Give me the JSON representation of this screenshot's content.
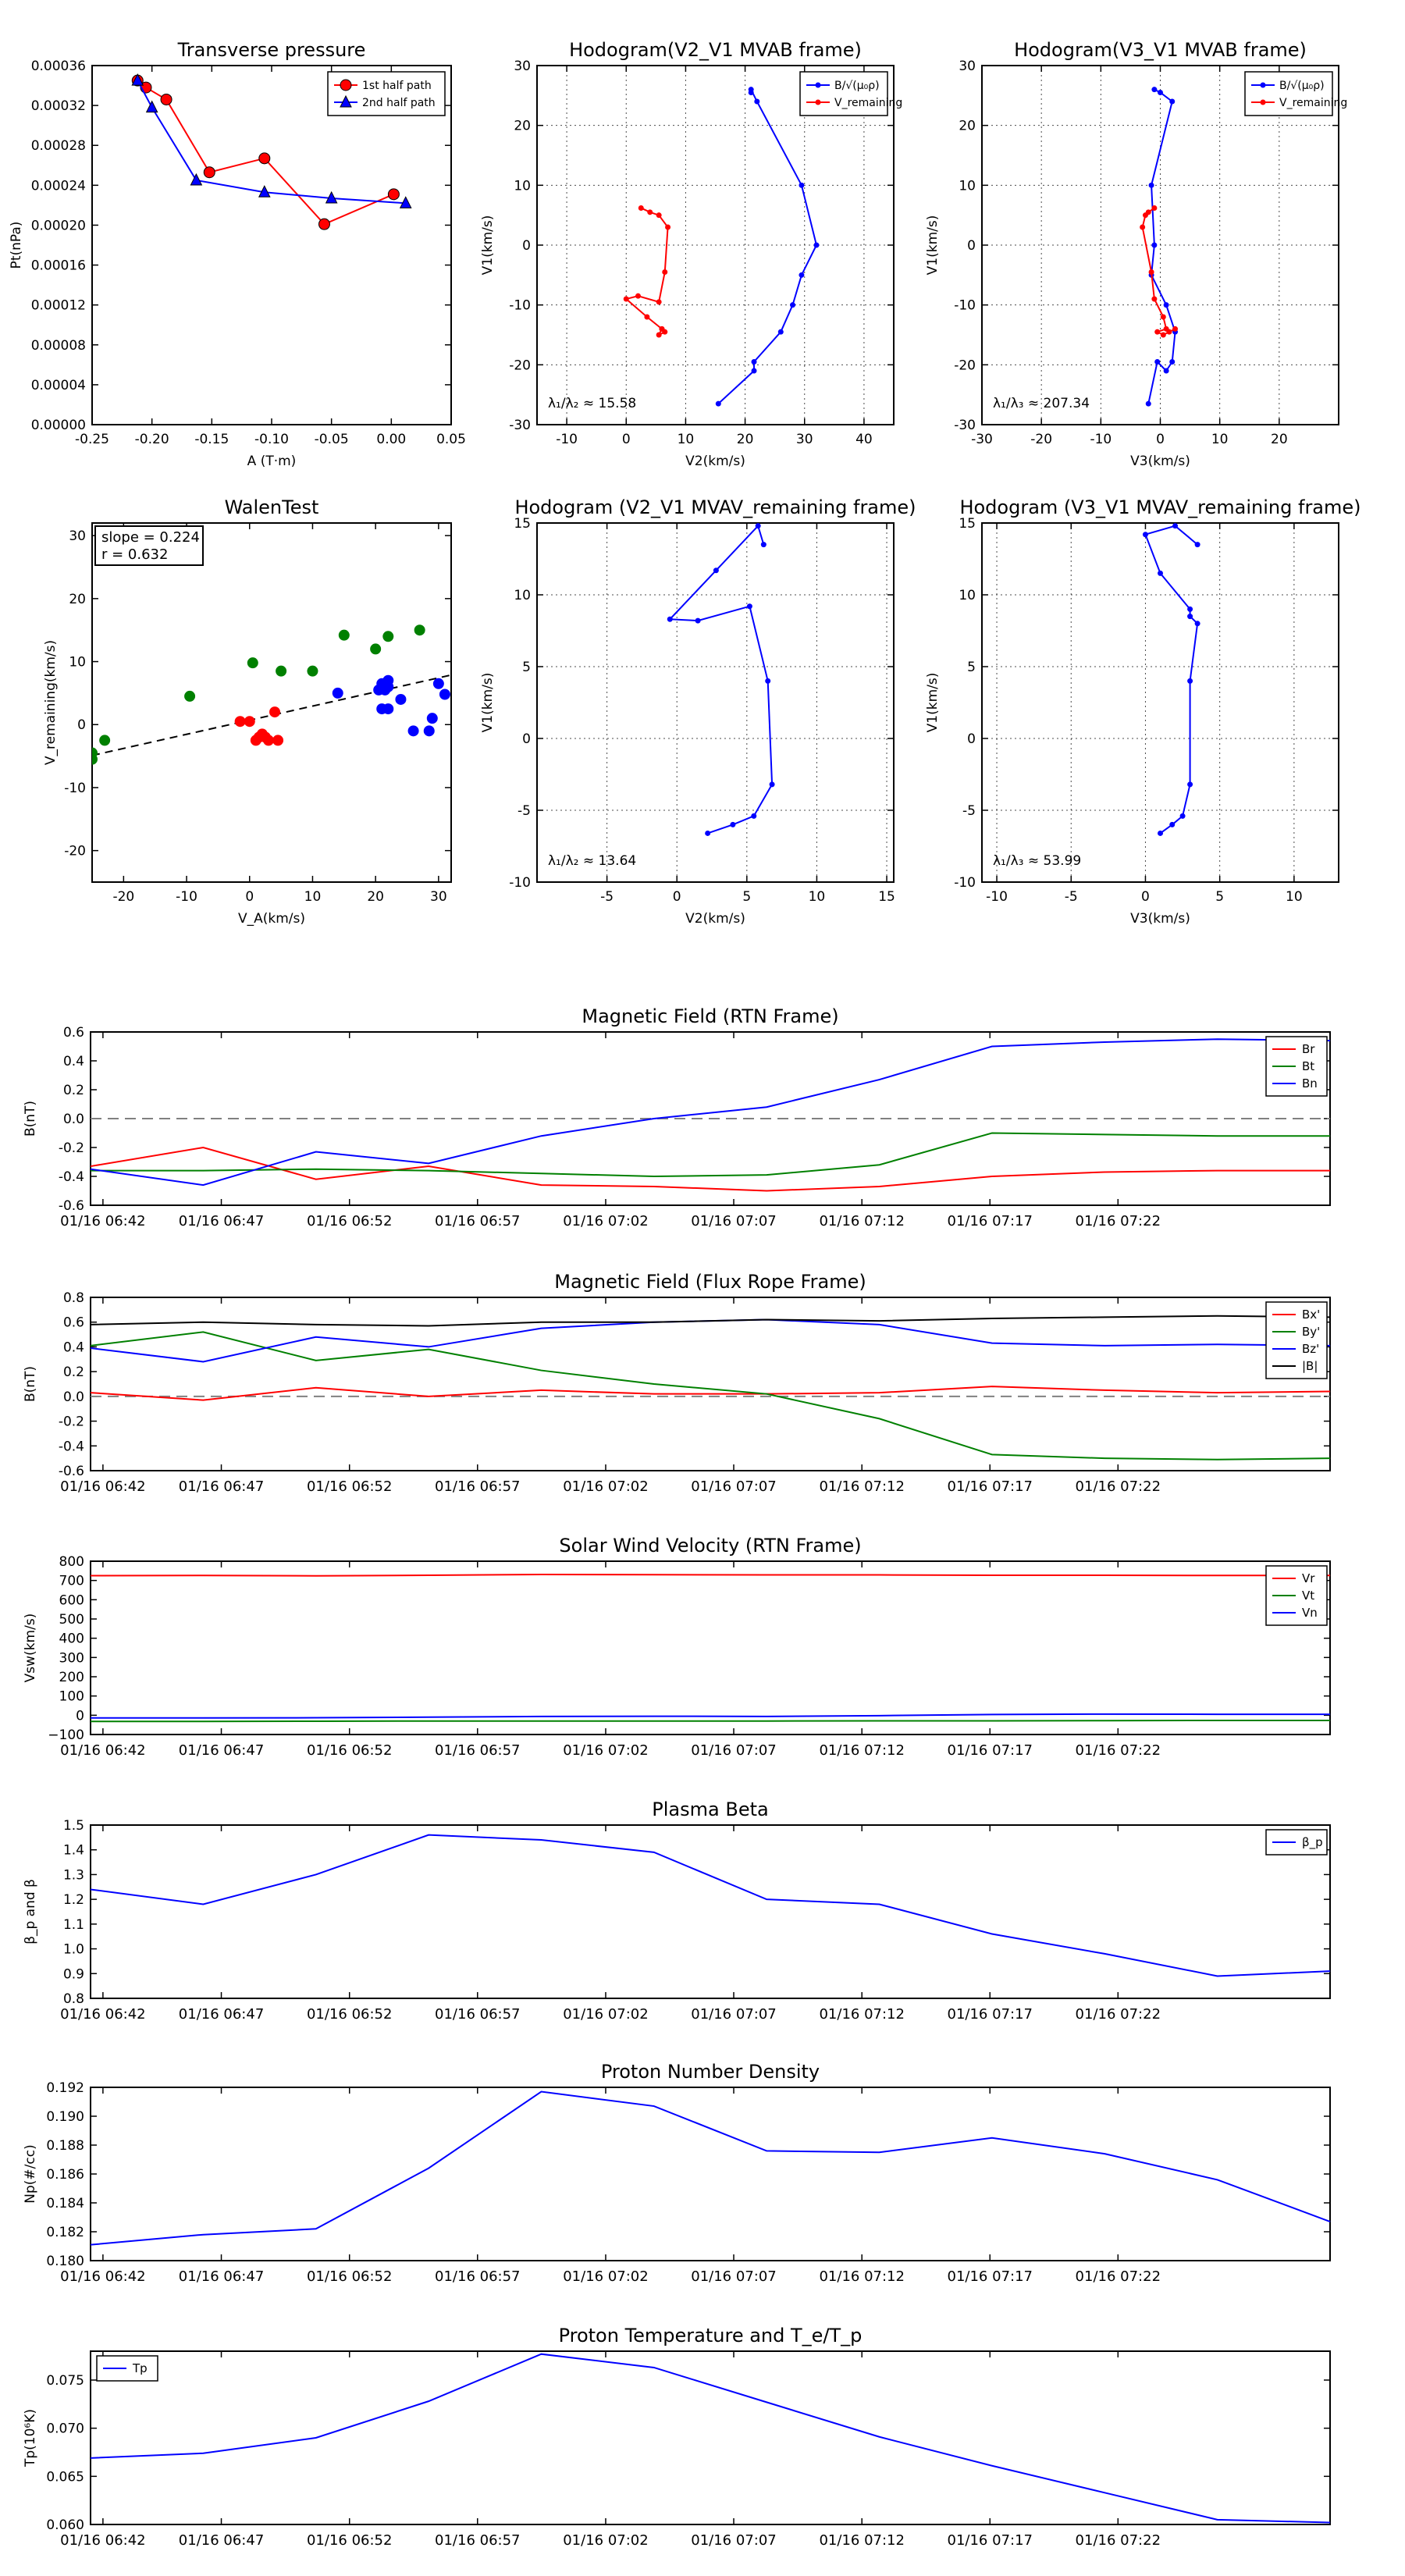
{
  "time_ticks": [
    "01/16 06:42",
    "01/16 06:47",
    "01/16 06:52",
    "01/16 06:57",
    "01/16 07:02",
    "01/16 07:07",
    "01/16 07:12",
    "01/16 07:17",
    "01/16 07:22"
  ],
  "colors": {
    "red": "#ff0000",
    "green": "#008000",
    "blue": "#0000ff",
    "black": "#000000",
    "grey": "#808080"
  },
  "chart_data": [
    {
      "id": "pt",
      "type": "line",
      "title": "Transverse pressure",
      "xlabel": "A (T·m)",
      "ylabel": "Pt(nPa)",
      "xlim": [
        -0.25,
        0.05
      ],
      "ylim": [
        0,
        0.00036
      ],
      "xticks": [
        "-0.25",
        "-0.20",
        "-0.15",
        "-0.10",
        "-0.05",
        "0.00",
        "0.05"
      ],
      "xtick_vals": [
        -0.25,
        -0.2,
        -0.15,
        -0.1,
        -0.05,
        0,
        0.05
      ],
      "yticks": [
        "0.00000",
        "0.00004",
        "0.00008",
        "0.00012",
        "0.00016",
        "0.00020",
        "0.00024",
        "0.00028",
        "0.00032",
        "0.00036"
      ],
      "ytick_vals": [
        0,
        4e-05,
        8e-05,
        0.00012,
        0.00016,
        0.0002,
        0.00024,
        0.00028,
        0.00032,
        0.00036
      ],
      "grid": false,
      "legend": "top-right",
      "series": [
        {
          "name": "1st half path",
          "color": "#ff0000",
          "marker": "circle",
          "x": [
            -0.212,
            -0.205,
            -0.188,
            -0.152,
            -0.106,
            -0.056,
            0.002
          ],
          "y": [
            0.000345,
            0.000338,
            0.000326,
            0.000253,
            0.000267,
            0.000201,
            0.000231
          ]
        },
        {
          "name": "2nd half path",
          "color": "#0000ff",
          "marker": "triangle",
          "x": [
            -0.212,
            -0.2,
            -0.163,
            -0.106,
            -0.05,
            0.012
          ],
          "y": [
            0.000345,
            0.000318,
            0.000245,
            0.000233,
            0.000227,
            0.000222
          ]
        }
      ]
    },
    {
      "id": "h1",
      "type": "line",
      "title": "Hodogram(V2_V1 MVAB frame)",
      "xlabel": "V2(km/s)",
      "ylabel": "V1(km/s)",
      "xlim": [
        -15,
        45
      ],
      "ylim": [
        -30,
        30
      ],
      "xticks": [
        "-10",
        "0",
        "10",
        "20",
        "30",
        "40"
      ],
      "xtick_vals": [
        -10,
        0,
        10,
        20,
        30,
        40
      ],
      "yticks": [
        "-30",
        "-20",
        "-10",
        "0",
        "10",
        "20",
        "30"
      ],
      "ytick_vals": [
        -30,
        -20,
        -10,
        0,
        10,
        20,
        30
      ],
      "grid": true,
      "legend": "top-right",
      "annotation": "λ₁/λ₂ ≈ 15.58",
      "series": [
        {
          "name": "B/√(μ₀ρ)",
          "color": "#0000ff",
          "marker": "dot",
          "x": [
            21,
            21,
            22,
            29.5,
            32,
            29.5,
            28,
            26,
            21.5,
            21.5,
            15.5
          ],
          "y": [
            25.5,
            26,
            24,
            10,
            0,
            -5,
            -10,
            -14.5,
            -19.5,
            -21,
            -26.5
          ]
        },
        {
          "name": "V_remaining",
          "color": "#ff0000",
          "marker": "dot",
          "x": [
            2.5,
            4,
            5.5,
            7,
            6.5,
            5.5,
            2,
            0,
            3.5,
            6,
            6.5,
            5.5,
            6
          ],
          "y": [
            6.2,
            5.5,
            5,
            3,
            -4.5,
            -9.5,
            -8.5,
            -9,
            -12,
            -14,
            -14.5,
            -15,
            -14
          ]
        }
      ]
    },
    {
      "id": "h2",
      "type": "line",
      "title": "Hodogram(V3_V1 MVAB frame)",
      "xlabel": "V3(km/s)",
      "ylabel": "V1(km/s)",
      "xlim": [
        -30,
        30
      ],
      "ylim": [
        -30,
        30
      ],
      "xticks": [
        "-30",
        "-20",
        "-10",
        "0",
        "10",
        "20"
      ],
      "xtick_vals": [
        -30,
        -20,
        -10,
        0,
        10,
        20
      ],
      "yticks": [
        "-30",
        "-20",
        "-10",
        "0",
        "10",
        "20",
        "30"
      ],
      "ytick_vals": [
        -30,
        -20,
        -10,
        0,
        10,
        20,
        30
      ],
      "grid": true,
      "legend": "top-right",
      "annotation": "λ₁/λ₃ ≈ 207.34",
      "series": [
        {
          "name": "B/√(μ₀ρ)",
          "color": "#0000ff",
          "marker": "dot",
          "x": [
            -1,
            0,
            2,
            -1.5,
            -1,
            -1.5,
            1,
            2.5,
            2,
            1,
            -0.5,
            -2
          ],
          "y": [
            26,
            25.5,
            24,
            10,
            0,
            -5,
            -10,
            -14.5,
            -19.5,
            -21,
            -19.5,
            -26.5
          ]
        },
        {
          "name": "V_remaining",
          "color": "#ff0000",
          "marker": "dot",
          "x": [
            -1,
            -2,
            -2.5,
            -3,
            -1.5,
            -1,
            0.5,
            1,
            -0.5,
            0.5,
            1.5,
            2.5
          ],
          "y": [
            6.2,
            5.5,
            5,
            3,
            -4.5,
            -9,
            -12,
            -14,
            -14.5,
            -15,
            -14.5,
            -14
          ]
        }
      ]
    },
    {
      "id": "walen",
      "type": "scatter",
      "title": "WalenTest",
      "xlabel": "V_A(km/s)",
      "ylabel": "V_remaining(km/s)",
      "xlim": [
        -25,
        32
      ],
      "ylim": [
        -25,
        32
      ],
      "xticks": [
        "-20",
        "-10",
        "0",
        "10",
        "20",
        "30"
      ],
      "xtick_vals": [
        -20,
        -10,
        0,
        10,
        20,
        30
      ],
      "yticks": [
        "-20",
        "-10",
        "0",
        "10",
        "20",
        "30"
      ],
      "ytick_vals": [
        -20,
        -10,
        0,
        10,
        20,
        30
      ],
      "grid": false,
      "legend_box": [
        "slope = 0.224",
        "r = 0.632"
      ],
      "fit_line": {
        "slope": 0.224,
        "intercept": 0.7
      },
      "series": [
        {
          "color": "#008000",
          "x": [
            -25,
            -25,
            -23,
            -9.5,
            0.5,
            5,
            10,
            15,
            20,
            22,
            27
          ],
          "y": [
            -5.5,
            -4.5,
            -2.5,
            4.5,
            9.8,
            8.5,
            8.5,
            14.2,
            12,
            14,
            15
          ]
        },
        {
          "color": "#ff0000",
          "x": [
            -1.5,
            0,
            1,
            1.5,
            2,
            2.5,
            3,
            4,
            4.5
          ],
          "y": [
            0.5,
            0.5,
            -2.5,
            -2,
            -1.5,
            -2,
            -2.5,
            2,
            -2.5
          ]
        },
        {
          "color": "#0000ff",
          "x": [
            14,
            20.5,
            21,
            21,
            21.5,
            22,
            22,
            22,
            24,
            26,
            28.5,
            29,
            30,
            31
          ],
          "y": [
            5,
            5.5,
            6.5,
            2.5,
            5.5,
            6,
            7,
            2.5,
            4,
            -1,
            -1,
            1,
            6.5,
            4.8
          ]
        }
      ]
    },
    {
      "id": "h3",
      "type": "line",
      "title": "Hodogram (V2_V1 MVAV_remaining frame)",
      "xlabel": "V2(km/s)",
      "ylabel": "V1(km/s)",
      "xlim": [
        -10,
        15.5
      ],
      "ylim": [
        -10,
        15
      ],
      "xticks": [
        "-5",
        "0",
        "5",
        "10",
        "15"
      ],
      "xtick_vals": [
        -5,
        0,
        5,
        10,
        15
      ],
      "yticks": [
        "-10",
        "-5",
        "0",
        "5",
        "10",
        "15"
      ],
      "ytick_vals": [
        -10,
        -5,
        0,
        5,
        10,
        15
      ],
      "grid": true,
      "annotation": "λ₁/λ₂ ≈ 13.64",
      "series": [
        {
          "color": "#0000ff",
          "marker": "dot",
          "x": [
            6.2,
            5.8,
            2.8,
            -0.5,
            1.5,
            5.2,
            6.5,
            6.8,
            5.5,
            4,
            2.2
          ],
          "y": [
            13.5,
            14.8,
            11.7,
            8.3,
            8.2,
            9.2,
            4,
            -3.2,
            -5.4,
            -6,
            -6.6
          ]
        }
      ]
    },
    {
      "id": "h4",
      "type": "line",
      "title": "Hodogram (V3_V1 MVAV_remaining frame)",
      "xlabel": "V3(km/s)",
      "ylabel": "V1(km/s)",
      "xlim": [
        -11,
        13
      ],
      "ylim": [
        -10,
        15
      ],
      "xticks": [
        "-10",
        "-5",
        "0",
        "5",
        "10"
      ],
      "xtick_vals": [
        -10,
        -5,
        0,
        5,
        10
      ],
      "yticks": [
        "-10",
        "-5",
        "0",
        "5",
        "10",
        "15"
      ],
      "ytick_vals": [
        -10,
        -5,
        0,
        5,
        10,
        15
      ],
      "grid": true,
      "annotation": "λ₁/λ₃ ≈ 53.99",
      "series": [
        {
          "color": "#0000ff",
          "marker": "dot",
          "x": [
            3.5,
            2,
            0,
            1,
            3,
            3,
            3.5,
            3,
            3,
            2.5,
            1.8,
            1
          ],
          "y": [
            13.5,
            14.8,
            14.2,
            11.5,
            9,
            8.5,
            8,
            4,
            -3.2,
            -5.4,
            -6,
            -6.6
          ]
        }
      ]
    },
    {
      "id": "bmag",
      "type": "line",
      "title": "Magnetic Field (RTN Frame)",
      "ylabel": "B(nT)",
      "ylim": [
        -0.6,
        0.6
      ],
      "yticks": [
        "-0.6",
        "-0.4",
        "-0.2",
        "0.0",
        "0.2",
        "0.4",
        "0.6"
      ],
      "ytick_vals": [
        -0.6,
        -0.4,
        -0.2,
        0,
        0.2,
        0.4,
        0.6
      ],
      "zero_line": true,
      "legend": "top-right",
      "series": [
        {
          "name": "Br",
          "color": "#ff0000",
          "y": [
            -0.33,
            -0.2,
            -0.42,
            -0.33,
            -0.46,
            -0.47,
            -0.5,
            -0.47,
            -0.4,
            -0.37,
            -0.36,
            -0.36
          ]
        },
        {
          "name": "Bt",
          "color": "#008000",
          "y": [
            -0.36,
            -0.36,
            -0.35,
            -0.36,
            -0.38,
            -0.4,
            -0.39,
            -0.32,
            -0.1,
            -0.11,
            -0.12,
            -0.12
          ]
        },
        {
          "name": "Bn",
          "color": "#0000ff",
          "y": [
            -0.35,
            -0.46,
            -0.23,
            -0.31,
            -0.12,
            0.0,
            0.08,
            0.27,
            0.5,
            0.53,
            0.55,
            0.54
          ]
        }
      ]
    },
    {
      "id": "bfr",
      "type": "line",
      "title": "Magnetic Field (Flux Rope Frame)",
      "ylabel": "B(nT)",
      "ylim": [
        -0.6,
        0.8
      ],
      "yticks": [
        "-0.6",
        "-0.4",
        "-0.2",
        "0.0",
        "0.2",
        "0.4",
        "0.6",
        "0.8"
      ],
      "ytick_vals": [
        -0.6,
        -0.4,
        -0.2,
        0,
        0.2,
        0.4,
        0.6,
        0.8
      ],
      "zero_line": true,
      "legend": "top-right",
      "series": [
        {
          "name": "Bx'",
          "color": "#ff0000",
          "y": [
            0.03,
            -0.03,
            0.07,
            0.0,
            0.05,
            0.02,
            0.02,
            0.03,
            0.08,
            0.05,
            0.03,
            0.04
          ]
        },
        {
          "name": "By'",
          "color": "#008000",
          "y": [
            0.41,
            0.52,
            0.29,
            0.38,
            0.21,
            0.1,
            0.02,
            -0.18,
            -0.47,
            -0.5,
            -0.51,
            -0.5
          ]
        },
        {
          "name": "Bz'",
          "color": "#0000ff",
          "y": [
            0.39,
            0.28,
            0.48,
            0.4,
            0.55,
            0.6,
            0.62,
            0.58,
            0.43,
            0.41,
            0.42,
            0.41
          ]
        },
        {
          "name": "|B|",
          "color": "#000000",
          "y": [
            0.58,
            0.6,
            0.58,
            0.57,
            0.6,
            0.6,
            0.62,
            0.61,
            0.63,
            0.64,
            0.65,
            0.64
          ]
        }
      ]
    },
    {
      "id": "vsw",
      "type": "line",
      "title": "Solar Wind Velocity (RTN Frame)",
      "ylabel": "Vsw(km/s)",
      "ylim": [
        -100,
        800
      ],
      "yticks": [
        "−100",
        "0",
        "100",
        "200",
        "300",
        "400",
        "500",
        "600",
        "700",
        "800"
      ],
      "ytick_vals": [
        -100,
        0,
        100,
        200,
        300,
        400,
        500,
        600,
        700,
        800
      ],
      "legend": "top-right",
      "series": [
        {
          "name": "Vr",
          "color": "#ff0000",
          "y": [
            725,
            726,
            724,
            727,
            731,
            730,
            729,
            729,
            727,
            727,
            726,
            726
          ]
        },
        {
          "name": "Vt",
          "color": "#008000",
          "y": [
            -32,
            -32,
            -31,
            -30,
            -30,
            -30,
            -30,
            -29,
            -29,
            -28,
            -27,
            -27
          ]
        },
        {
          "name": "Vn",
          "color": "#0000ff",
          "y": [
            -14,
            -14,
            -13,
            -10,
            -6,
            -5,
            -6,
            -2,
            4,
            6,
            5,
            5
          ]
        }
      ]
    },
    {
      "id": "beta",
      "type": "line",
      "title": "Plasma Beta",
      "ylabel": "β_p and β",
      "ylim": [
        0.8,
        1.5
      ],
      "yticks": [
        "0.8",
        "0.9",
        "1.0",
        "1.1",
        "1.2",
        "1.3",
        "1.4",
        "1.5"
      ],
      "ytick_vals": [
        0.8,
        0.9,
        1.0,
        1.1,
        1.2,
        1.3,
        1.4,
        1.5
      ],
      "legend": "top-right",
      "series": [
        {
          "name": "β_p",
          "color": "#0000ff",
          "y": [
            1.24,
            1.18,
            1.3,
            1.46,
            1.44,
            1.39,
            1.2,
            1.18,
            1.06,
            0.98,
            0.89,
            0.91
          ]
        }
      ]
    },
    {
      "id": "np",
      "type": "line",
      "title": "Proton Number Density",
      "ylabel": "Np(#/cc)",
      "ylim": [
        0.18,
        0.192
      ],
      "yticks": [
        "0.180",
        "0.182",
        "0.184",
        "0.186",
        "0.188",
        "0.190",
        "0.192"
      ],
      "ytick_vals": [
        0.18,
        0.182,
        0.184,
        0.186,
        0.188,
        0.19,
        0.192
      ],
      "series": [
        {
          "color": "#0000ff",
          "y": [
            0.1811,
            0.1818,
            0.1822,
            0.1864,
            0.1917,
            0.1907,
            0.1876,
            0.1875,
            0.1885,
            0.1874,
            0.1856,
            0.1827
          ]
        }
      ]
    },
    {
      "id": "tp",
      "type": "line",
      "title": "Proton Temperature and T_e/T_p",
      "ylabel": "Tp(10⁶K)",
      "ylim": [
        0.06,
        0.078
      ],
      "yticks": [
        "0.060",
        "0.065",
        "0.070",
        "0.075"
      ],
      "ytick_vals": [
        0.06,
        0.065,
        0.07,
        0.075
      ],
      "legend": "top-left",
      "series": [
        {
          "name": "Tp",
          "color": "#0000ff",
          "y": [
            0.0669,
            0.0674,
            0.069,
            0.0728,
            0.0777,
            0.0763,
            0.0727,
            0.0691,
            0.0661,
            0.0633,
            0.0605,
            0.0602
          ]
        }
      ]
    }
  ]
}
